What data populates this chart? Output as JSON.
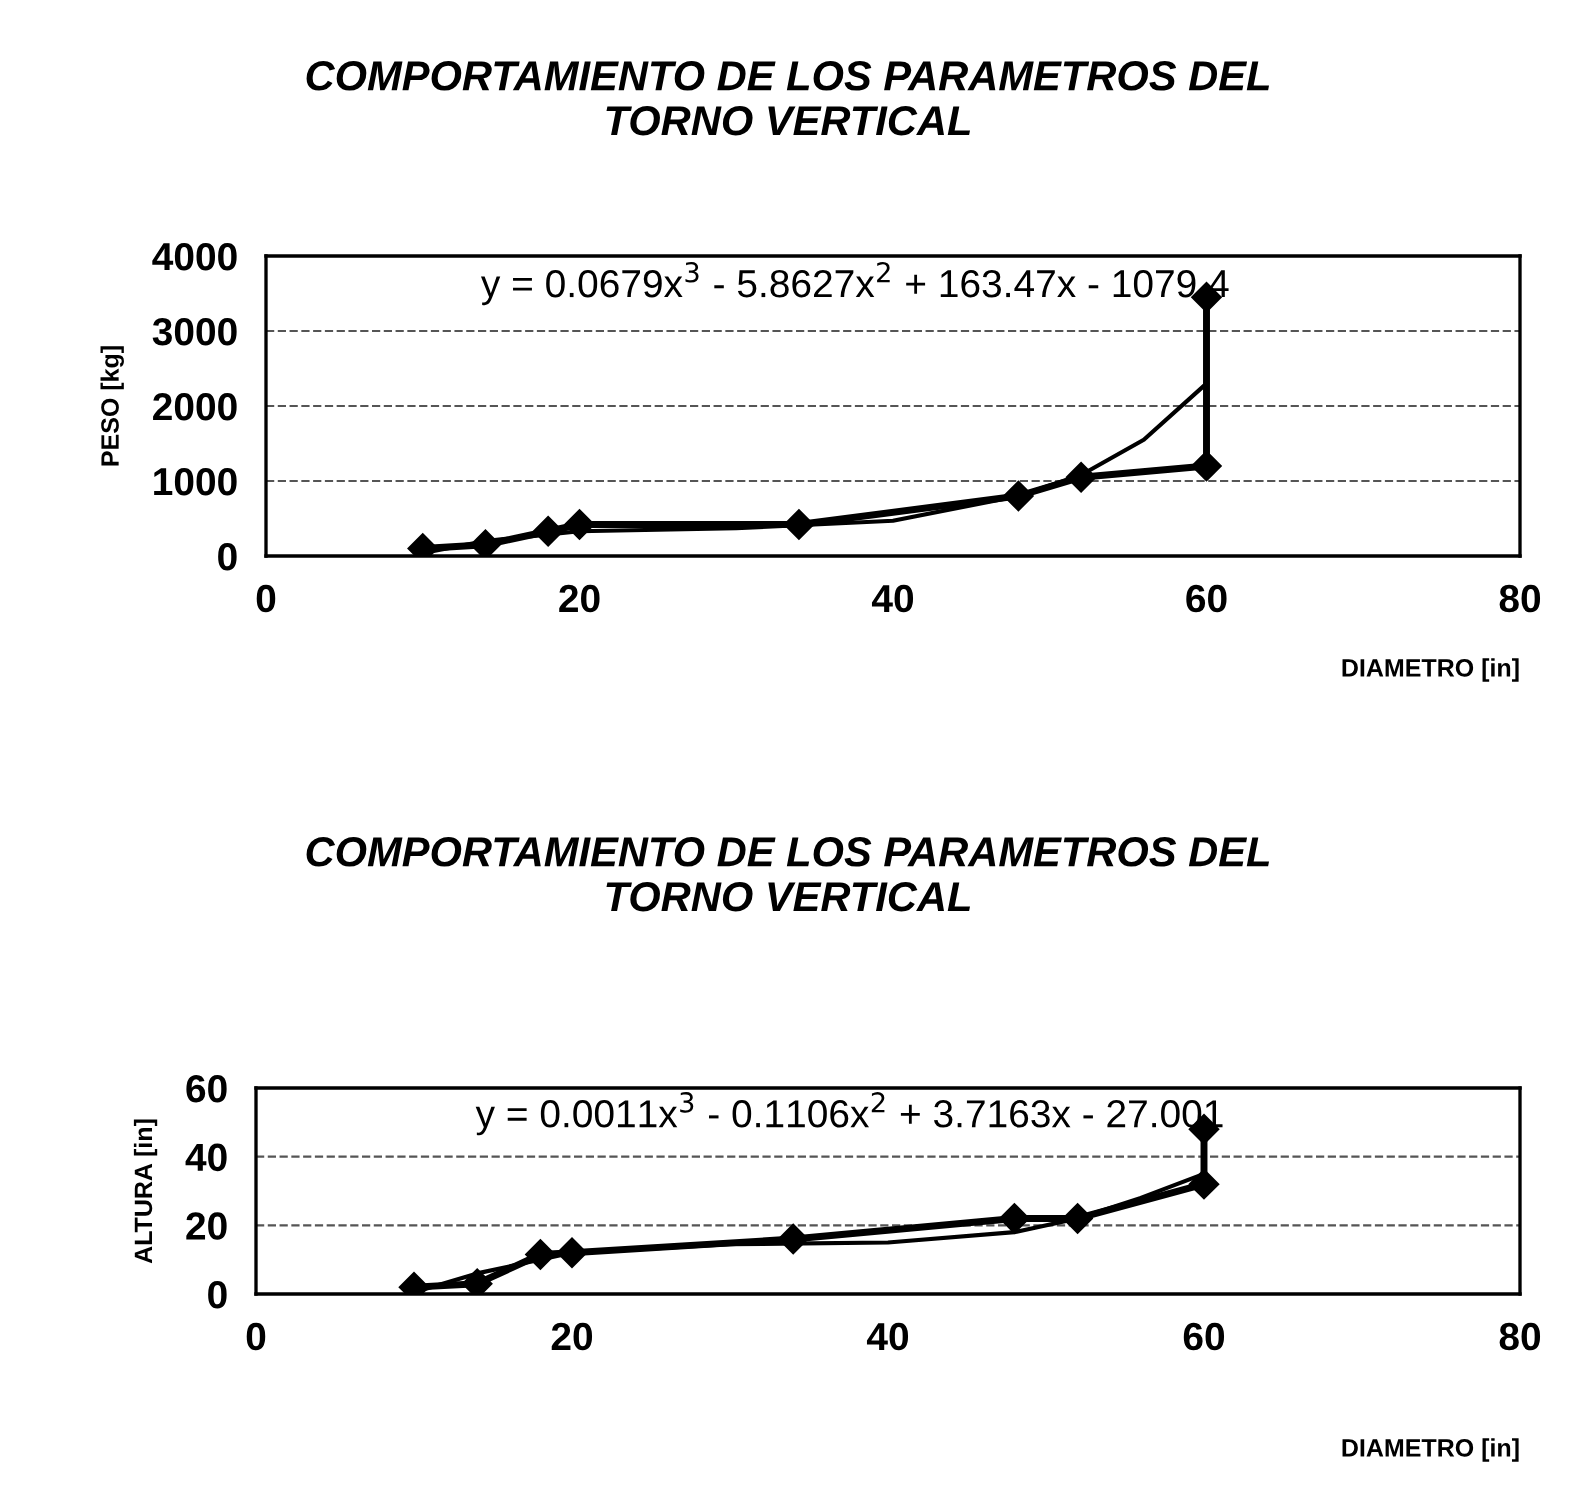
{
  "chart_data": [
    {
      "type": "line",
      "title": "COMPORTAMIENTO DE LOS PARAMETROS DEL\nTORNO VERTICAL",
      "xlabel": "DIAMETRO [in]",
      "ylabel": "PESO [kg]",
      "xlim": [
        0,
        80
      ],
      "xticks": [
        0,
        20,
        40,
        60,
        80
      ],
      "ylim": [
        0,
        4000
      ],
      "yticks": [
        0,
        1000,
        2000,
        3000,
        4000
      ],
      "grid": "y",
      "annotations": [
        "y = 0.0679x$^{3}$ - 5.8627x$^{2}$ + 163.47x - 1079.4"
      ],
      "series": [
        {
          "color": "#000000",
          "marker": "diamond",
          "x": [
            10,
            14,
            18,
            20,
            34,
            48,
            52,
            60,
            60
          ],
          "values": [
            100,
            150,
            330,
            420,
            420,
            800,
            1050,
            1200,
            3450
          ]
        },
        {
          "color": "#000000",
          "marker": "none",
          "x": [
            10,
            14,
            20,
            30,
            40,
            48,
            52,
            56,
            60
          ],
          "values": [
            40,
            200,
            330,
            370,
            470,
            800,
            1080,
            1550,
            2300
          ]
        }
      ]
    },
    {
      "type": "line",
      "title": "COMPORTAMIENTO DE LOS PARAMETROS DEL\nTORNO VERTICAL",
      "xlabel": "DIAMETRO [in]",
      "ylabel": "ALTURA [in]",
      "xlim": [
        0,
        80
      ],
      "xticks": [
        0,
        20,
        40,
        60,
        80
      ],
      "ylim": [
        0,
        60
      ],
      "yticks": [
        0,
        20,
        40,
        60
      ],
      "grid": "y",
      "annotations": [
        "y = 0.0011x$^{3}$ - 0.1106x$^{2}$ + 3.7163x - 27.001"
      ],
      "series": [
        {
          "color": "#000000",
          "marker": "diamond",
          "x": [
            10,
            14,
            18,
            20,
            34,
            48,
            52,
            60,
            60
          ],
          "values": [
            2,
            3,
            11.5,
            12,
            16,
            22,
            22,
            32,
            48
          ]
        },
        {
          "color": "#000000",
          "marker": "none",
          "x": [
            10,
            14,
            20,
            30,
            40,
            48,
            52,
            56,
            60
          ],
          "values": [
            0.5,
            6,
            12,
            14.5,
            15,
            18,
            22,
            28,
            35
          ]
        }
      ]
    }
  ]
}
